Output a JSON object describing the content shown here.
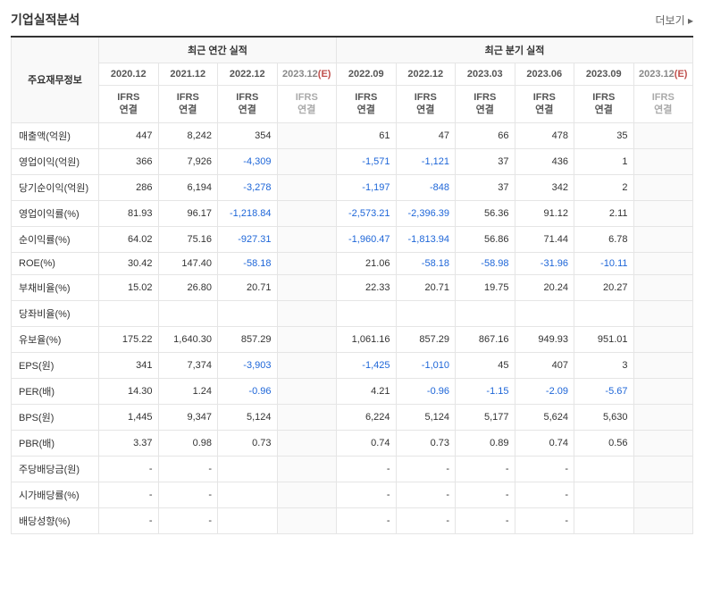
{
  "title": "기업실적분석",
  "more_label": "더보기",
  "header": {
    "row_label_head": "주요재무정보",
    "group_annual": "최근 연간 실적",
    "group_quarter": "최근 분기 실적",
    "ifrs_label_line1": "IFRS",
    "ifrs_label_line2": "연결",
    "e_mark": "(E)",
    "periods": {
      "a0": "2020.12",
      "a1": "2021.12",
      "a2": "2022.12",
      "a3": "2023.12",
      "q0": "2022.09",
      "q1": "2022.12",
      "q2": "2023.03",
      "q3": "2023.06",
      "q4": "2023.09",
      "q5": "2023.12"
    }
  },
  "rows": {
    "r0": {
      "label": "매출액(억원)",
      "a0": "447",
      "a1": "8,242",
      "a2": "354",
      "a3": "",
      "q0": "61",
      "q1": "47",
      "q2": "66",
      "q3": "478",
      "q4": "35",
      "q5": ""
    },
    "r1": {
      "label": "영업이익(억원)",
      "a0": "366",
      "a1": "7,926",
      "a2": "-4,309",
      "a3": "",
      "q0": "-1,571",
      "q1": "-1,121",
      "q2": "37",
      "q3": "436",
      "q4": "1",
      "q5": ""
    },
    "r2": {
      "label": "당기순이익(억원)",
      "a0": "286",
      "a1": "6,194",
      "a2": "-3,278",
      "a3": "",
      "q0": "-1,197",
      "q1": "-848",
      "q2": "37",
      "q3": "342",
      "q4": "2",
      "q5": ""
    },
    "r3": {
      "label": "영업이익률(%)",
      "a0": "81.93",
      "a1": "96.17",
      "a2": "-1,218.84",
      "a3": "",
      "q0": "-2,573.21",
      "q1": "-2,396.39",
      "q2": "56.36",
      "q3": "91.12",
      "q4": "2.11",
      "q5": ""
    },
    "r4": {
      "label": "순이익률(%)",
      "a0": "64.02",
      "a1": "75.16",
      "a2": "-927.31",
      "a3": "",
      "q0": "-1,960.47",
      "q1": "-1,813.94",
      "q2": "56.86",
      "q3": "71.44",
      "q4": "6.78",
      "q5": ""
    },
    "r5": {
      "label": "ROE(%)",
      "a0": "30.42",
      "a1": "147.40",
      "a2": "-58.18",
      "a3": "",
      "q0": "21.06",
      "q1": "-58.18",
      "q2": "-58.98",
      "q3": "-31.96",
      "q4": "-10.11",
      "q5": ""
    },
    "r6": {
      "label": "부채비율(%)",
      "a0": "15.02",
      "a1": "26.80",
      "a2": "20.71",
      "a3": "",
      "q0": "22.33",
      "q1": "20.71",
      "q2": "19.75",
      "q3": "20.24",
      "q4": "20.27",
      "q5": ""
    },
    "r7": {
      "label": "당좌비율(%)",
      "a0": "",
      "a1": "",
      "a2": "",
      "a3": "",
      "q0": "",
      "q1": "",
      "q2": "",
      "q3": "",
      "q4": "",
      "q5": ""
    },
    "r8": {
      "label": "유보율(%)",
      "a0": "175.22",
      "a1": "1,640.30",
      "a2": "857.29",
      "a3": "",
      "q0": "1,061.16",
      "q1": "857.29",
      "q2": "867.16",
      "q3": "949.93",
      "q4": "951.01",
      "q5": ""
    },
    "r9": {
      "label": "EPS(원)",
      "a0": "341",
      "a1": "7,374",
      "a2": "-3,903",
      "a3": "",
      "q0": "-1,425",
      "q1": "-1,010",
      "q2": "45",
      "q3": "407",
      "q4": "3",
      "q5": ""
    },
    "r10": {
      "label": "PER(배)",
      "a0": "14.30",
      "a1": "1.24",
      "a2": "-0.96",
      "a3": "",
      "q0": "4.21",
      "q1": "-0.96",
      "q2": "-1.15",
      "q3": "-2.09",
      "q4": "-5.67",
      "q5": ""
    },
    "r11": {
      "label": "BPS(원)",
      "a0": "1,445",
      "a1": "9,347",
      "a2": "5,124",
      "a3": "",
      "q0": "6,224",
      "q1": "5,124",
      "q2": "5,177",
      "q3": "5,624",
      "q4": "5,630",
      "q5": ""
    },
    "r12": {
      "label": "PBR(배)",
      "a0": "3.37",
      "a1": "0.98",
      "a2": "0.73",
      "a3": "",
      "q0": "0.74",
      "q1": "0.73",
      "q2": "0.89",
      "q3": "0.74",
      "q4": "0.56",
      "q5": ""
    },
    "r13": {
      "label": "주당배당금(원)",
      "a0": "-",
      "a1": "-",
      "a2": "",
      "a3": "",
      "q0": "-",
      "q1": "-",
      "q2": "-",
      "q3": "-",
      "q4": "",
      "q5": ""
    },
    "r14": {
      "label": "시가배당률(%)",
      "a0": "-",
      "a1": "-",
      "a2": "",
      "a3": "",
      "q0": "-",
      "q1": "-",
      "q2": "-",
      "q3": "-",
      "q4": "",
      "q5": ""
    },
    "r15": {
      "label": "배당성향(%)",
      "a0": "-",
      "a1": "-",
      "a2": "",
      "a3": "",
      "q0": "-",
      "q1": "-",
      "q2": "-",
      "q3": "-",
      "q4": "",
      "q5": ""
    }
  }
}
